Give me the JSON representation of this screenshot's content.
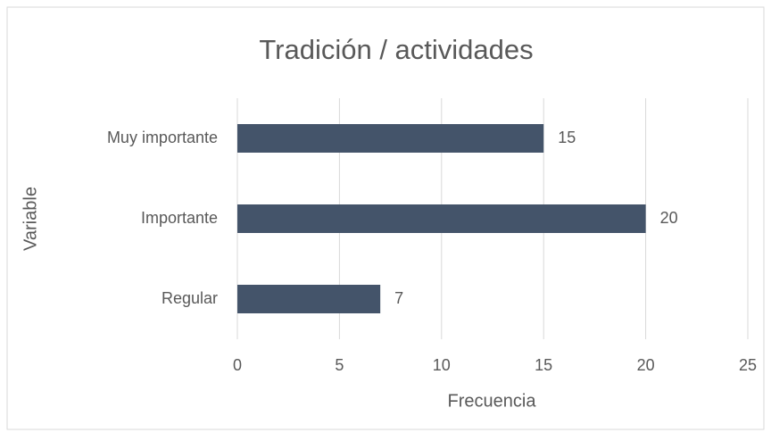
{
  "chart_data": {
    "type": "bar",
    "orientation": "horizontal",
    "title": "Tradición / actividades",
    "categories": [
      "Muy importante",
      "Importante",
      "Regular"
    ],
    "values": [
      15,
      20,
      7
    ],
    "color": "#44546a",
    "xlim": [
      0,
      25
    ],
    "xticks": [
      0,
      5,
      10,
      15,
      20,
      25
    ],
    "grid": true,
    "x_label": "Frecuencia",
    "y_label": "Variable"
  }
}
